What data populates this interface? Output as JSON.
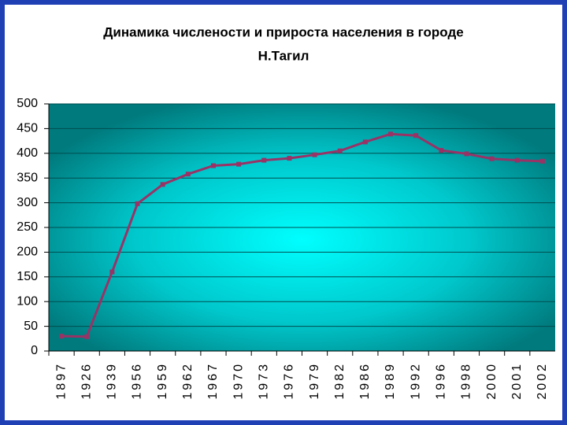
{
  "chart_data": {
    "type": "line",
    "title": [
      "Динамика численоcти и прироста населения в городе",
      "Н.Тагил"
    ],
    "categories": [
      "1897",
      "1926",
      "1939",
      "1956",
      "1959",
      "1962",
      "1967",
      "1970",
      "1973",
      "1976",
      "1979",
      "1982",
      "1986",
      "1989",
      "1992",
      "1996",
      "1998",
      "2000",
      "2001",
      "2002"
    ],
    "values": [
      30,
      29,
      160,
      298,
      337,
      358,
      375,
      378,
      386,
      390,
      397,
      405,
      423,
      439,
      436,
      406,
      399,
      389,
      386,
      384
    ],
    "color": "#993366",
    "ylim": [
      0,
      500
    ],
    "yticks": [
      0,
      50,
      100,
      150,
      200,
      250,
      300,
      350,
      400,
      450,
      500
    ],
    "grid": true
  }
}
